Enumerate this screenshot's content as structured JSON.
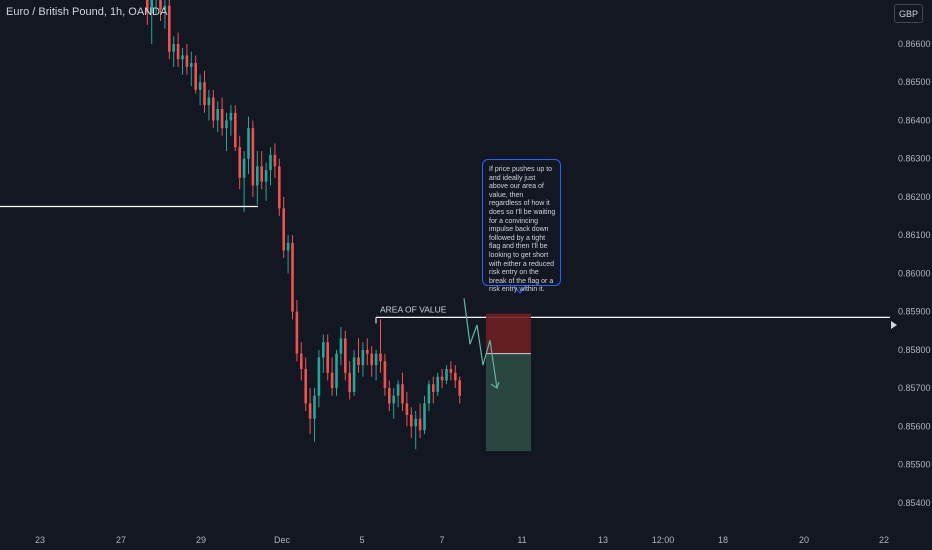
{
  "header": {
    "symbol_title": "Euro / British Pound, 1h, OANDA",
    "currency": "GBP"
  },
  "annotations": {
    "area_of_value_label": "AREA OF VALUE",
    "callout_text": "If price pushes up to and ideally just above our area of value, then regardless of how it does so I'll be waiting for a convincing impulse back down followed by a tight flag and then I'll be looking to get short with either a reduced risk entry on the break of the flag or a risk entry within it."
  },
  "colors": {
    "background": "#131722",
    "up_candle": "#26a69a",
    "down_candle": "#ef5350",
    "axis_text": "#b2b5be",
    "line": "#ffffff",
    "stop_zone": "#6b1f24",
    "target_zone": "#2c4a44",
    "callout_border": "#2962ff"
  },
  "chart_data": {
    "type": "candlestick",
    "symbol": "EURGBP",
    "timeframe": "1h",
    "y_axis": {
      "range": [
        0.85355,
        0.86715
      ],
      "ticks": [
        "0.86600",
        "0.86500",
        "0.86400",
        "0.86300",
        "0.86200",
        "0.86100",
        "0.86000",
        "0.85900",
        "0.85800",
        "0.85700",
        "0.85600",
        "0.85500",
        "0.85400"
      ]
    },
    "x_axis": {
      "ticks": [
        "23",
        "27",
        "29",
        "Dec",
        "5",
        "7",
        "11",
        "13",
        "12:00",
        "18",
        "20",
        "22"
      ]
    },
    "levels": {
      "horizontal_line_1": 0.86175,
      "area_of_value": 0.85885,
      "entry": 0.8579,
      "stop": 0.85895,
      "target": 0.85535
    },
    "projection_path": [
      0.85935,
      0.85815,
      0.85865,
      0.8576,
      0.85825,
      0.857
    ],
    "candles": [
      {
        "o": 0.8676,
        "h": 0.8678,
        "l": 0.8665,
        "c": 0.8668
      },
      {
        "o": 0.8668,
        "h": 0.8674,
        "l": 0.866,
        "c": 0.8672
      },
      {
        "o": 0.8672,
        "h": 0.8676,
        "l": 0.8668,
        "c": 0.8674
      },
      {
        "o": 0.8674,
        "h": 0.8676,
        "l": 0.8666,
        "c": 0.8669
      },
      {
        "o": 0.8669,
        "h": 0.8673,
        "l": 0.8664,
        "c": 0.867
      },
      {
        "o": 0.867,
        "h": 0.8672,
        "l": 0.8656,
        "c": 0.8658
      },
      {
        "o": 0.8658,
        "h": 0.8662,
        "l": 0.8654,
        "c": 0.866
      },
      {
        "o": 0.866,
        "h": 0.8663,
        "l": 0.8654,
        "c": 0.8656
      },
      {
        "o": 0.8656,
        "h": 0.8659,
        "l": 0.8652,
        "c": 0.8657
      },
      {
        "o": 0.8657,
        "h": 0.866,
        "l": 0.8652,
        "c": 0.8654
      },
      {
        "o": 0.8654,
        "h": 0.8658,
        "l": 0.8649,
        "c": 0.8655
      },
      {
        "o": 0.8655,
        "h": 0.8657,
        "l": 0.8647,
        "c": 0.8648
      },
      {
        "o": 0.8648,
        "h": 0.8652,
        "l": 0.8644,
        "c": 0.865
      },
      {
        "o": 0.865,
        "h": 0.8653,
        "l": 0.8642,
        "c": 0.8644
      },
      {
        "o": 0.8644,
        "h": 0.8648,
        "l": 0.864,
        "c": 0.8646
      },
      {
        "o": 0.8646,
        "h": 0.8648,
        "l": 0.8638,
        "c": 0.864
      },
      {
        "o": 0.864,
        "h": 0.8645,
        "l": 0.8637,
        "c": 0.8643
      },
      {
        "o": 0.8643,
        "h": 0.8646,
        "l": 0.8636,
        "c": 0.8638
      },
      {
        "o": 0.8638,
        "h": 0.8642,
        "l": 0.8632,
        "c": 0.864
      },
      {
        "o": 0.864,
        "h": 0.8644,
        "l": 0.8636,
        "c": 0.8642
      },
      {
        "o": 0.8642,
        "h": 0.8644,
        "l": 0.8632,
        "c": 0.8633
      },
      {
        "o": 0.8633,
        "h": 0.8636,
        "l": 0.8622,
        "c": 0.8625
      },
      {
        "o": 0.8625,
        "h": 0.8632,
        "l": 0.8616,
        "c": 0.863
      },
      {
        "o": 0.863,
        "h": 0.8641,
        "l": 0.8626,
        "c": 0.8638
      },
      {
        "o": 0.8638,
        "h": 0.864,
        "l": 0.862,
        "c": 0.8623
      },
      {
        "o": 0.8623,
        "h": 0.8632,
        "l": 0.8618,
        "c": 0.8628
      },
      {
        "o": 0.8628,
        "h": 0.8632,
        "l": 0.8622,
        "c": 0.8624
      },
      {
        "o": 0.8624,
        "h": 0.8629,
        "l": 0.8619,
        "c": 0.8627
      },
      {
        "o": 0.8627,
        "h": 0.8633,
        "l": 0.8623,
        "c": 0.8631
      },
      {
        "o": 0.8631,
        "h": 0.8634,
        "l": 0.8625,
        "c": 0.8628
      },
      {
        "o": 0.8628,
        "h": 0.863,
        "l": 0.8615,
        "c": 0.8617
      },
      {
        "o": 0.8617,
        "h": 0.862,
        "l": 0.8604,
        "c": 0.8606
      },
      {
        "o": 0.8606,
        "h": 0.861,
        "l": 0.86,
        "c": 0.8608
      },
      {
        "o": 0.8608,
        "h": 0.861,
        "l": 0.8588,
        "c": 0.859
      },
      {
        "o": 0.859,
        "h": 0.8593,
        "l": 0.8577,
        "c": 0.8579
      },
      {
        "o": 0.8579,
        "h": 0.8582,
        "l": 0.8572,
        "c": 0.8575
      },
      {
        "o": 0.8575,
        "h": 0.8578,
        "l": 0.8564,
        "c": 0.8566
      },
      {
        "o": 0.8566,
        "h": 0.857,
        "l": 0.8558,
        "c": 0.8562
      },
      {
        "o": 0.8562,
        "h": 0.857,
        "l": 0.8556,
        "c": 0.8568
      },
      {
        "o": 0.8568,
        "h": 0.858,
        "l": 0.8565,
        "c": 0.8578
      },
      {
        "o": 0.8578,
        "h": 0.8584,
        "l": 0.8574,
        "c": 0.8582
      },
      {
        "o": 0.8582,
        "h": 0.8584,
        "l": 0.8572,
        "c": 0.8574
      },
      {
        "o": 0.8574,
        "h": 0.8578,
        "l": 0.8568,
        "c": 0.857
      },
      {
        "o": 0.857,
        "h": 0.858,
        "l": 0.8568,
        "c": 0.8579
      },
      {
        "o": 0.8579,
        "h": 0.8586,
        "l": 0.8576,
        "c": 0.8583
      },
      {
        "o": 0.8583,
        "h": 0.8585,
        "l": 0.8572,
        "c": 0.8574
      },
      {
        "o": 0.8574,
        "h": 0.8577,
        "l": 0.8567,
        "c": 0.8569
      },
      {
        "o": 0.8569,
        "h": 0.858,
        "l": 0.8568,
        "c": 0.8578
      },
      {
        "o": 0.8578,
        "h": 0.8583,
        "l": 0.8574,
        "c": 0.8576
      },
      {
        "o": 0.8576,
        "h": 0.8582,
        "l": 0.8573,
        "c": 0.858
      },
      {
        "o": 0.858,
        "h": 0.8583,
        "l": 0.8576,
        "c": 0.8579
      },
      {
        "o": 0.8579,
        "h": 0.8581,
        "l": 0.8573,
        "c": 0.8576
      },
      {
        "o": 0.8576,
        "h": 0.858,
        "l": 0.8572,
        "c": 0.8579
      },
      {
        "o": 0.8579,
        "h": 0.8588,
        "l": 0.8574,
        "c": 0.8577
      },
      {
        "o": 0.8577,
        "h": 0.8579,
        "l": 0.8568,
        "c": 0.857
      },
      {
        "o": 0.857,
        "h": 0.8572,
        "l": 0.8564,
        "c": 0.8566
      },
      {
        "o": 0.8566,
        "h": 0.857,
        "l": 0.8562,
        "c": 0.8568
      },
      {
        "o": 0.8568,
        "h": 0.8572,
        "l": 0.8565,
        "c": 0.8571
      },
      {
        "o": 0.8571,
        "h": 0.8574,
        "l": 0.8564,
        "c": 0.8566
      },
      {
        "o": 0.8566,
        "h": 0.8569,
        "l": 0.856,
        "c": 0.8563
      },
      {
        "o": 0.8563,
        "h": 0.8565,
        "l": 0.8557,
        "c": 0.856
      },
      {
        "o": 0.856,
        "h": 0.8564,
        "l": 0.8554,
        "c": 0.8562
      },
      {
        "o": 0.8562,
        "h": 0.8566,
        "l": 0.8557,
        "c": 0.8559
      },
      {
        "o": 0.8559,
        "h": 0.8568,
        "l": 0.8558,
        "c": 0.8566
      },
      {
        "o": 0.8566,
        "h": 0.8572,
        "l": 0.8564,
        "c": 0.8571
      },
      {
        "o": 0.8571,
        "h": 0.8573,
        "l": 0.8566,
        "c": 0.8569
      },
      {
        "o": 0.8569,
        "h": 0.8574,
        "l": 0.8568,
        "c": 0.8573
      },
      {
        "o": 0.8573,
        "h": 0.8575,
        "l": 0.857,
        "c": 0.8572
      },
      {
        "o": 0.8572,
        "h": 0.8576,
        "l": 0.8571,
        "c": 0.8575
      },
      {
        "o": 0.8575,
        "h": 0.8577,
        "l": 0.8572,
        "c": 0.8574
      },
      {
        "o": 0.8574,
        "h": 0.8576,
        "l": 0.857,
        "c": 0.8572
      },
      {
        "o": 0.8572,
        "h": 0.8573,
        "l": 0.8566,
        "c": 0.8568
      }
    ]
  }
}
